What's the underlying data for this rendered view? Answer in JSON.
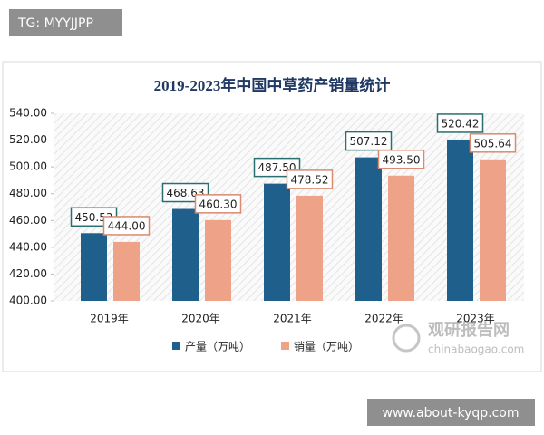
{
  "chart_data": {
    "type": "bar",
    "title": "2019-2023年中国中草药产销量统计",
    "categories": [
      "2019年",
      "2020年",
      "2021年",
      "2022年",
      "2023年"
    ],
    "series": [
      {
        "name": "产量（万吨）",
        "color": "#1f5f8b",
        "values": [
          450.53,
          468.63,
          487.5,
          507.12,
          520.42
        ],
        "value_labels": [
          "450.53",
          "468.63",
          "487.50",
          "507.12",
          "520.42"
        ]
      },
      {
        "name": "销量（万吨）",
        "color": "#eea388",
        "values": [
          444,
          460.3,
          478.52,
          493.5,
          505.64
        ],
        "value_labels": [
          "444.00",
          "460.30",
          "478.52",
          "493.50",
          "505.64"
        ]
      }
    ],
    "ylim": [
      400,
      540
    ],
    "yticks": [
      {
        "value": 400,
        "label": "400.00"
      },
      {
        "value": 420,
        "label": "420.00"
      },
      {
        "value": 440,
        "label": "440.00"
      },
      {
        "value": 460,
        "label": "460.00"
      },
      {
        "value": 480,
        "label": "480.00"
      },
      {
        "value": 500,
        "label": "500.00"
      },
      {
        "value": 520,
        "label": "520.00"
      },
      {
        "value": 540,
        "label": "540.00"
      }
    ],
    "legend": "bottom"
  },
  "watermarks": {
    "top_left": "TG: MYYJJPP",
    "bottom_right": "www.about-kyqp.com",
    "logo": "观研报告网",
    "logo_url": "chinabaogao.com"
  }
}
